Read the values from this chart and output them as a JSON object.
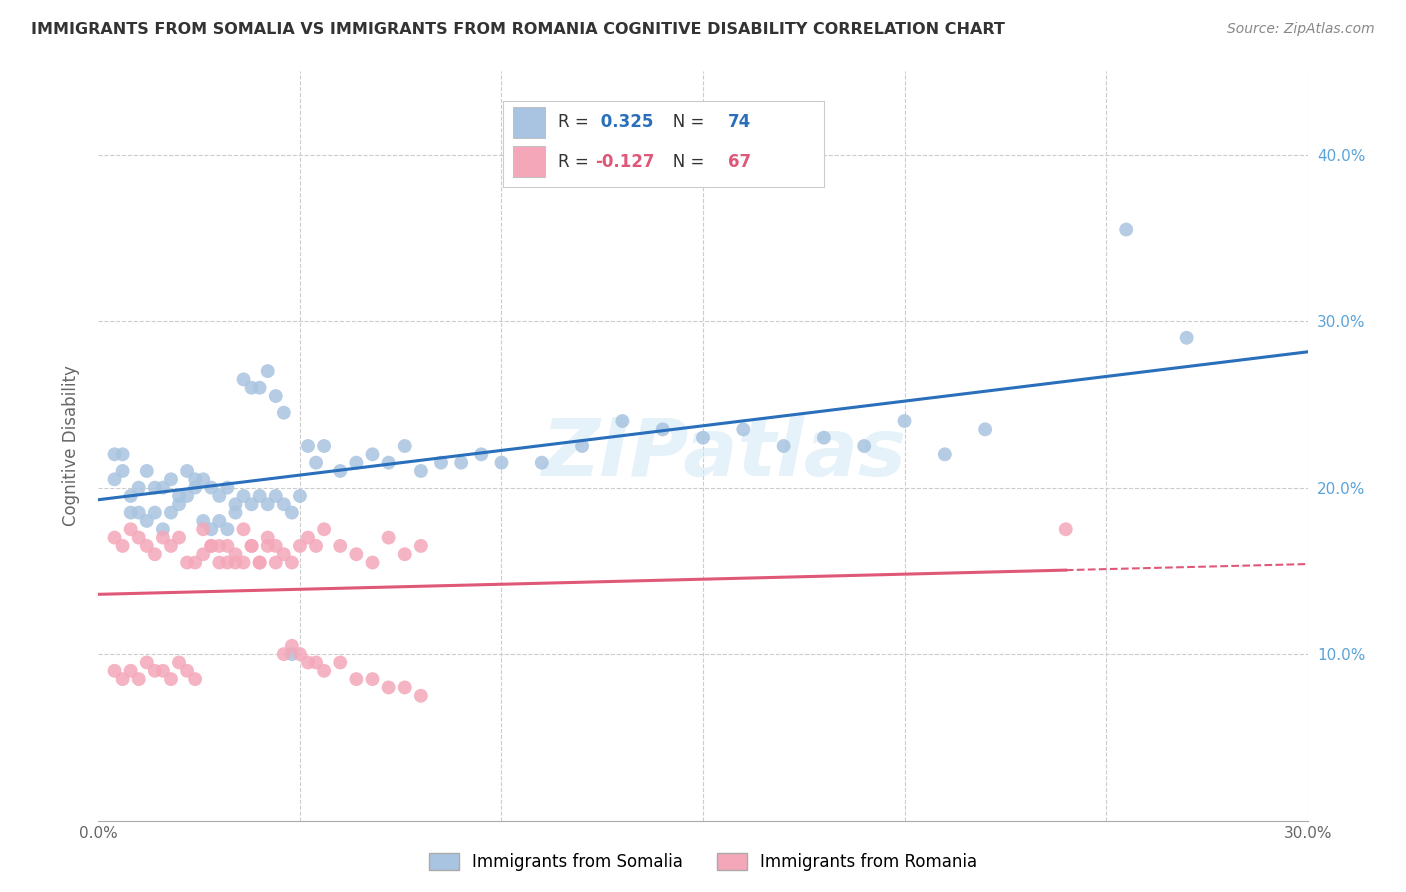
{
  "title": "IMMIGRANTS FROM SOMALIA VS IMMIGRANTS FROM ROMANIA COGNITIVE DISABILITY CORRELATION CHART",
  "source": "Source: ZipAtlas.com",
  "ylabel": "Cognitive Disability",
  "xlim": [
    0.0,
    0.3
  ],
  "ylim": [
    0.0,
    0.45
  ],
  "x_ticks": [
    0.0,
    0.05,
    0.1,
    0.15,
    0.2,
    0.25,
    0.3
  ],
  "y_ticks": [
    0.0,
    0.1,
    0.2,
    0.3,
    0.4
  ],
  "y_tick_labels_right": [
    "",
    "10.0%",
    "20.0%",
    "30.0%",
    "40.0%"
  ],
  "somalia_R": 0.325,
  "somalia_N": 74,
  "romania_R": -0.127,
  "romania_N": 67,
  "somalia_color": "#a8c4e0",
  "romania_color": "#f4a7b9",
  "somalia_line_color": "#2a6fbb",
  "romania_line_color": "#e05878",
  "watermark": "ZIPatlas",
  "somalia_scatter_x": [
    0.004,
    0.006,
    0.008,
    0.01,
    0.012,
    0.014,
    0.016,
    0.018,
    0.02,
    0.022,
    0.024,
    0.026,
    0.028,
    0.03,
    0.032,
    0.034,
    0.036,
    0.038,
    0.04,
    0.042,
    0.044,
    0.046,
    0.048,
    0.05,
    0.052,
    0.054,
    0.056,
    0.06,
    0.064,
    0.068,
    0.072,
    0.076,
    0.08,
    0.085,
    0.09,
    0.095,
    0.1,
    0.11,
    0.12,
    0.13,
    0.14,
    0.15,
    0.16,
    0.17,
    0.18,
    0.19,
    0.2,
    0.21,
    0.22,
    0.004,
    0.006,
    0.008,
    0.01,
    0.012,
    0.014,
    0.016,
    0.018,
    0.02,
    0.022,
    0.024,
    0.026,
    0.028,
    0.03,
    0.032,
    0.034,
    0.036,
    0.038,
    0.04,
    0.042,
    0.044,
    0.046,
    0.048,
    0.255,
    0.27
  ],
  "somalia_scatter_y": [
    0.205,
    0.21,
    0.195,
    0.2,
    0.21,
    0.2,
    0.2,
    0.205,
    0.195,
    0.21,
    0.2,
    0.205,
    0.2,
    0.195,
    0.2,
    0.19,
    0.195,
    0.19,
    0.195,
    0.19,
    0.195,
    0.19,
    0.185,
    0.195,
    0.225,
    0.215,
    0.225,
    0.21,
    0.215,
    0.22,
    0.215,
    0.225,
    0.21,
    0.215,
    0.215,
    0.22,
    0.215,
    0.215,
    0.225,
    0.24,
    0.235,
    0.23,
    0.235,
    0.225,
    0.23,
    0.225,
    0.24,
    0.22,
    0.235,
    0.22,
    0.22,
    0.185,
    0.185,
    0.18,
    0.185,
    0.175,
    0.185,
    0.19,
    0.195,
    0.205,
    0.18,
    0.175,
    0.18,
    0.175,
    0.185,
    0.265,
    0.26,
    0.26,
    0.27,
    0.255,
    0.245,
    0.1,
    0.355,
    0.29
  ],
  "romania_scatter_x": [
    0.004,
    0.006,
    0.008,
    0.01,
    0.012,
    0.014,
    0.016,
    0.018,
    0.02,
    0.022,
    0.024,
    0.026,
    0.028,
    0.03,
    0.032,
    0.034,
    0.036,
    0.038,
    0.04,
    0.042,
    0.044,
    0.046,
    0.048,
    0.05,
    0.052,
    0.054,
    0.056,
    0.06,
    0.064,
    0.068,
    0.072,
    0.076,
    0.08,
    0.004,
    0.006,
    0.008,
    0.01,
    0.012,
    0.014,
    0.016,
    0.018,
    0.02,
    0.022,
    0.024,
    0.026,
    0.028,
    0.03,
    0.032,
    0.034,
    0.036,
    0.038,
    0.04,
    0.042,
    0.044,
    0.046,
    0.048,
    0.05,
    0.052,
    0.054,
    0.056,
    0.06,
    0.064,
    0.068,
    0.072,
    0.076,
    0.08,
    0.24
  ],
  "romania_scatter_y": [
    0.17,
    0.165,
    0.175,
    0.17,
    0.165,
    0.16,
    0.17,
    0.165,
    0.17,
    0.155,
    0.155,
    0.16,
    0.165,
    0.155,
    0.155,
    0.16,
    0.175,
    0.165,
    0.155,
    0.17,
    0.165,
    0.16,
    0.155,
    0.165,
    0.17,
    0.165,
    0.175,
    0.165,
    0.16,
    0.155,
    0.17,
    0.16,
    0.165,
    0.09,
    0.085,
    0.09,
    0.085,
    0.095,
    0.09,
    0.09,
    0.085,
    0.095,
    0.09,
    0.085,
    0.175,
    0.165,
    0.165,
    0.165,
    0.155,
    0.155,
    0.165,
    0.155,
    0.165,
    0.155,
    0.1,
    0.105,
    0.1,
    0.095,
    0.095,
    0.09,
    0.095,
    0.085,
    0.085,
    0.08,
    0.08,
    0.075,
    0.175
  ]
}
